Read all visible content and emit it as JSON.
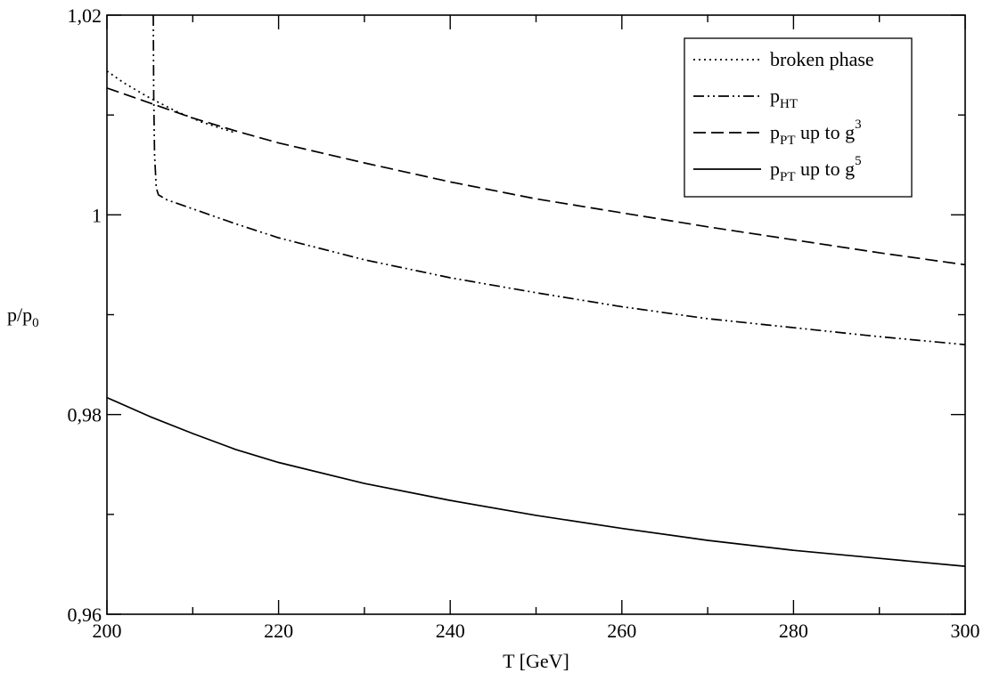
{
  "chart_data": {
    "type": "line",
    "xlabel": "T [GeV]",
    "ylabel": {
      "main": "p/p",
      "sub": "0"
    },
    "xlim": [
      200,
      300
    ],
    "ylim": [
      0.96,
      1.02
    ],
    "x_ticks": [
      {
        "value": 200,
        "label": "200"
      },
      {
        "value": 220,
        "label": "220"
      },
      {
        "value": 240,
        "label": "240"
      },
      {
        "value": 260,
        "label": "260"
      },
      {
        "value": 280,
        "label": "280"
      },
      {
        "value": 300,
        "label": "300"
      }
    ],
    "x_minor_ticks": [
      210,
      230,
      250,
      270,
      290
    ],
    "y_ticks": [
      {
        "value": 0.96,
        "label": "0,96"
      },
      {
        "value": 0.98,
        "label": "0,98"
      },
      {
        "value": 1.0,
        "label": "1"
      },
      {
        "value": 1.02,
        "label": "1,02"
      }
    ],
    "y_minor_ticks": [
      0.97,
      0.99,
      1.01
    ],
    "grid": false,
    "legend_position": "top-right",
    "series": [
      {
        "key": "broken",
        "name": {
          "main": "broken phase",
          "sub": "",
          "tail": "",
          "sup": ""
        },
        "style": "dotted",
        "color": "#000000",
        "x": [
          200,
          202,
          205,
          208,
          211,
          215
        ],
        "y": [
          1.0144,
          1.0132,
          1.0117,
          1.0104,
          1.0093,
          1.0082
        ]
      },
      {
        "key": "pht",
        "name": {
          "main": "p",
          "sub": "HT",
          "tail": "",
          "sup": ""
        },
        "style": "dashdotdot",
        "color": "#000000",
        "x": [
          205.4,
          205.45,
          205.55,
          205.75,
          206,
          207,
          208,
          210,
          215,
          220,
          230,
          240,
          250,
          260,
          270,
          280,
          290,
          300
        ],
        "y": [
          1.02,
          1.012,
          1.006,
          1.0027,
          1.002,
          1.0015,
          1.0012,
          1.0006,
          0.9991,
          0.9977,
          0.9955,
          0.9937,
          0.9922,
          0.9908,
          0.9896,
          0.9887,
          0.9878,
          0.987
        ]
      },
      {
        "key": "pt3",
        "name": {
          "main": "p",
          "sub": "PT",
          "tail": " up to g",
          "sup": "3"
        },
        "style": "dashed",
        "color": "#000000",
        "x": [
          200,
          205,
          210,
          215,
          220,
          230,
          240,
          250,
          260,
          270,
          280,
          290,
          300
        ],
        "y": [
          1.0127,
          1.0112,
          1.0097,
          1.0084,
          1.0072,
          1.0052,
          1.0033,
          1.0016,
          1.0002,
          0.9988,
          0.9975,
          0.9962,
          0.995
        ]
      },
      {
        "key": "pt5",
        "name": {
          "main": "p",
          "sub": "PT",
          "tail": " up to g",
          "sup": "5"
        },
        "style": "solid",
        "color": "#000000",
        "x": [
          200,
          205,
          210,
          215,
          220,
          230,
          240,
          250,
          260,
          270,
          280,
          290,
          300
        ],
        "y": [
          0.9817,
          0.9798,
          0.9781,
          0.9765,
          0.9752,
          0.9731,
          0.9714,
          0.9699,
          0.9686,
          0.9674,
          0.9664,
          0.9656,
          0.9648
        ]
      }
    ]
  }
}
